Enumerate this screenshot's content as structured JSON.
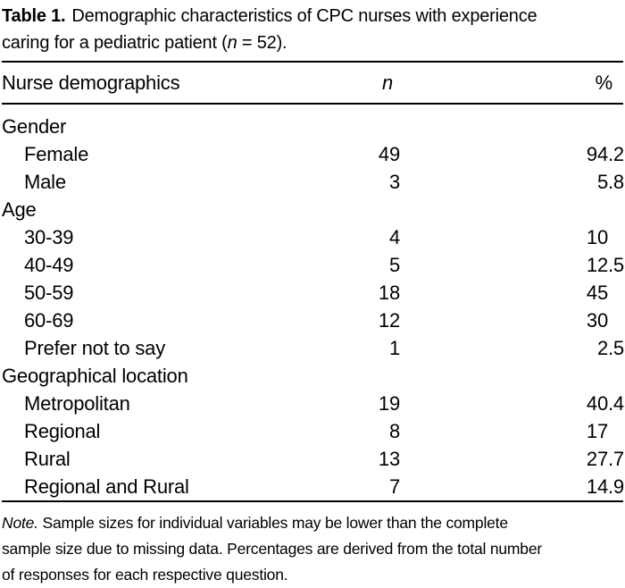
{
  "caption": {
    "label": "Table 1.",
    "line1": "Demographic characteristics of CPC nurses with experience",
    "line2_pre": "caring for a pediatric patient (",
    "n_symbol": "n",
    "line2_post": " = 52)."
  },
  "header": {
    "col_label": "Nurse demographics",
    "col_n": "n",
    "col_pct": "%"
  },
  "rows": [
    {
      "label": "Gender",
      "indent": false,
      "n": "",
      "pct": ""
    },
    {
      "label": "Female",
      "indent": true,
      "n": "49",
      "pct": "94.2"
    },
    {
      "label": "Male",
      "indent": true,
      "n": "3",
      "pct": "5.8"
    },
    {
      "label": "Age",
      "indent": false,
      "n": "",
      "pct": ""
    },
    {
      "label": "30-39",
      "indent": true,
      "n": "4",
      "pct": "10"
    },
    {
      "label": "40-49",
      "indent": true,
      "n": "5",
      "pct": "12.5"
    },
    {
      "label": "50-59",
      "indent": true,
      "n": "18",
      "pct": "45"
    },
    {
      "label": "60-69",
      "indent": true,
      "n": "12",
      "pct": "30"
    },
    {
      "label": "Prefer not to say",
      "indent": true,
      "n": "1",
      "pct": "2.5"
    },
    {
      "label": "Geographical location",
      "indent": false,
      "n": "",
      "pct": ""
    },
    {
      "label": "Metropolitan",
      "indent": true,
      "n": "19",
      "pct": "40.4"
    },
    {
      "label": "Regional",
      "indent": true,
      "n": "8",
      "pct": "17"
    },
    {
      "label": "Rural",
      "indent": true,
      "n": "13",
      "pct": "27.7"
    },
    {
      "label": "Regional and Rural",
      "indent": true,
      "n": "7",
      "pct": "14.9"
    }
  ],
  "note": {
    "label": "Note.",
    "line1_rest": " Sample sizes for individual variables may be lower than the complete",
    "line2": "sample size due to missing data. Percentages are derived from the total number",
    "line3": "of responses for each respective question."
  },
  "colors": {
    "text": "#000000",
    "background": "#ffffff",
    "rule": "#000000"
  }
}
